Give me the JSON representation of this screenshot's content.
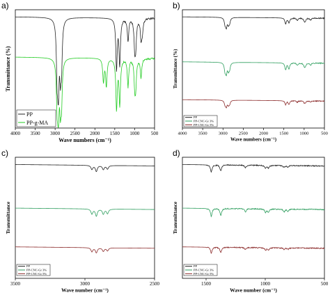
{
  "chart_data": [
    {
      "panel": "a)",
      "type": "line",
      "xlabel": "Wave numbers (cm⁻¹)",
      "ylabel": "Transmittance (%)",
      "xlim": [
        4000,
        500
      ],
      "xticks": [
        "4000",
        "3500",
        "3000",
        "2500",
        "2000",
        "1500",
        "1000",
        "500"
      ],
      "grid": false,
      "legend_position": "bottom-left",
      "series": [
        {
          "name": "PP",
          "color": "#222222",
          "offset": 0.0,
          "peaks": [
            [
              2950,
              0.55
            ],
            [
              2918,
              0.75
            ],
            [
              2868,
              0.5
            ],
            [
              2838,
              0.45
            ],
            [
              1456,
              0.55
            ],
            [
              1376,
              0.5
            ],
            [
              1167,
              0.25
            ],
            [
              998,
              0.3
            ],
            [
              973,
              0.25
            ],
            [
              841,
              0.2
            ],
            [
              809,
              0.15
            ]
          ]
        },
        {
          "name": "PP-g-MA",
          "color": "#22cc22",
          "offset": 0.34,
          "peaks": [
            [
              2950,
              0.45
            ],
            [
              2918,
              0.6
            ],
            [
              2868,
              0.45
            ],
            [
              2838,
              0.42
            ],
            [
              1785,
              0.25
            ],
            [
              1712,
              0.3
            ],
            [
              1456,
              0.55
            ],
            [
              1376,
              0.5
            ],
            [
              1167,
              0.3
            ],
            [
              998,
              0.28
            ],
            [
              973,
              0.25
            ],
            [
              841,
              0.2
            ]
          ]
        }
      ]
    },
    {
      "panel": "b)",
      "type": "line",
      "xlabel": "Wave numbers (cm⁻¹)",
      "ylabel": "Transmittance (%)",
      "xlim": [
        4000,
        500
      ],
      "xticks": [
        "4000",
        "3500",
        "3000",
        "2500",
        "2000",
        "1500",
        "1000",
        "500"
      ],
      "grid": false,
      "legend_position": "bottom-left",
      "series": [
        {
          "name": "PP",
          "color": "#222222",
          "offset": 0.0,
          "peaks": [
            [
              2950,
              0.12
            ],
            [
              2918,
              0.18
            ],
            [
              2868,
              0.12
            ],
            [
              2838,
              0.1
            ],
            [
              1456,
              0.12
            ],
            [
              1376,
              0.1
            ],
            [
              1167,
              0.05
            ],
            [
              998,
              0.05
            ],
            [
              973,
              0.05
            ],
            [
              841,
              0.04
            ]
          ]
        },
        {
          "name": "PP-CNC-Gr 3%",
          "color": "#2e9e5e",
          "offset": 0.38,
          "peaks": [
            [
              2950,
              0.16
            ],
            [
              2918,
              0.2
            ],
            [
              2868,
              0.14
            ],
            [
              2838,
              0.12
            ],
            [
              1456,
              0.14
            ],
            [
              1376,
              0.12
            ],
            [
              1167,
              0.05
            ],
            [
              998,
              0.06
            ],
            [
              973,
              0.05
            ],
            [
              841,
              0.04
            ]
          ]
        },
        {
          "name": "PP-CNC-Gr 5%",
          "color": "#8b2a2a",
          "offset": 0.7,
          "peaks": [
            [
              2950,
              0.08
            ],
            [
              2918,
              0.12
            ],
            [
              2868,
              0.08
            ],
            [
              2838,
              0.07
            ],
            [
              1456,
              0.08
            ],
            [
              1376,
              0.07
            ],
            [
              1167,
              0.03
            ],
            [
              998,
              0.03
            ],
            [
              973,
              0.03
            ],
            [
              841,
              0.02
            ]
          ]
        }
      ]
    },
    {
      "panel": "c)",
      "type": "line",
      "xlabel": "Wave number (cm⁻¹)",
      "ylabel": "Transmittance",
      "xlim": [
        3500,
        2500
      ],
      "xticks": [
        "3500",
        "3000",
        "2500"
      ],
      "grid": false,
      "legend_position": "bottom-left",
      "series": [
        {
          "name": "PP",
          "color": "#222222",
          "offset": 0.0,
          "peaks": [
            [
              2950,
              0.08
            ],
            [
              2918,
              0.12
            ],
            [
              2868,
              0.08
            ],
            [
              2838,
              0.07
            ]
          ]
        },
        {
          "name": "PP-CNC-Gr 3%",
          "color": "#2e9e5e",
          "offset": 0.36,
          "peaks": [
            [
              2950,
              0.1
            ],
            [
              2918,
              0.14
            ],
            [
              2868,
              0.1
            ],
            [
              2838,
              0.09
            ]
          ]
        },
        {
          "name": "PP-CNC-Gr 5%",
          "color": "#8b2a2a",
          "offset": 0.68,
          "peaks": [
            [
              2950,
              0.08
            ],
            [
              2918,
              0.1
            ],
            [
              2868,
              0.07
            ],
            [
              2838,
              0.06
            ]
          ]
        }
      ]
    },
    {
      "panel": "d)",
      "type": "line",
      "xlabel": "Wave number (cm⁻¹)",
      "ylabel": "Transmittance",
      "xlim": [
        1700,
        500
      ],
      "xticks": [
        "1500",
        "1000",
        "500"
      ],
      "grid": false,
      "legend_position": "bottom-left",
      "series": [
        {
          "name": "PP",
          "color": "#222222",
          "offset": 0.0,
          "peaks": [
            [
              1456,
              0.14
            ],
            [
              1376,
              0.12
            ],
            [
              1167,
              0.05
            ],
            [
              998,
              0.06
            ],
            [
              973,
              0.05
            ],
            [
              841,
              0.04
            ],
            [
              809,
              0.03
            ]
          ]
        },
        {
          "name": "PP-CNC-Gr 3%",
          "color": "#2e9e5e",
          "offset": 0.36,
          "peaks": [
            [
              1456,
              0.16
            ],
            [
              1376,
              0.14
            ],
            [
              1167,
              0.06
            ],
            [
              998,
              0.07
            ],
            [
              973,
              0.06
            ],
            [
              841,
              0.05
            ],
            [
              809,
              0.04
            ]
          ]
        },
        {
          "name": "PP-CNC-Gr 5%",
          "color": "#8b2a2a",
          "offset": 0.68,
          "peaks": [
            [
              1456,
              0.12
            ],
            [
              1376,
              0.1
            ],
            [
              1167,
              0.04
            ],
            [
              998,
              0.05
            ],
            [
              973,
              0.04
            ],
            [
              841,
              0.03
            ],
            [
              809,
              0.03
            ]
          ]
        }
      ]
    }
  ]
}
